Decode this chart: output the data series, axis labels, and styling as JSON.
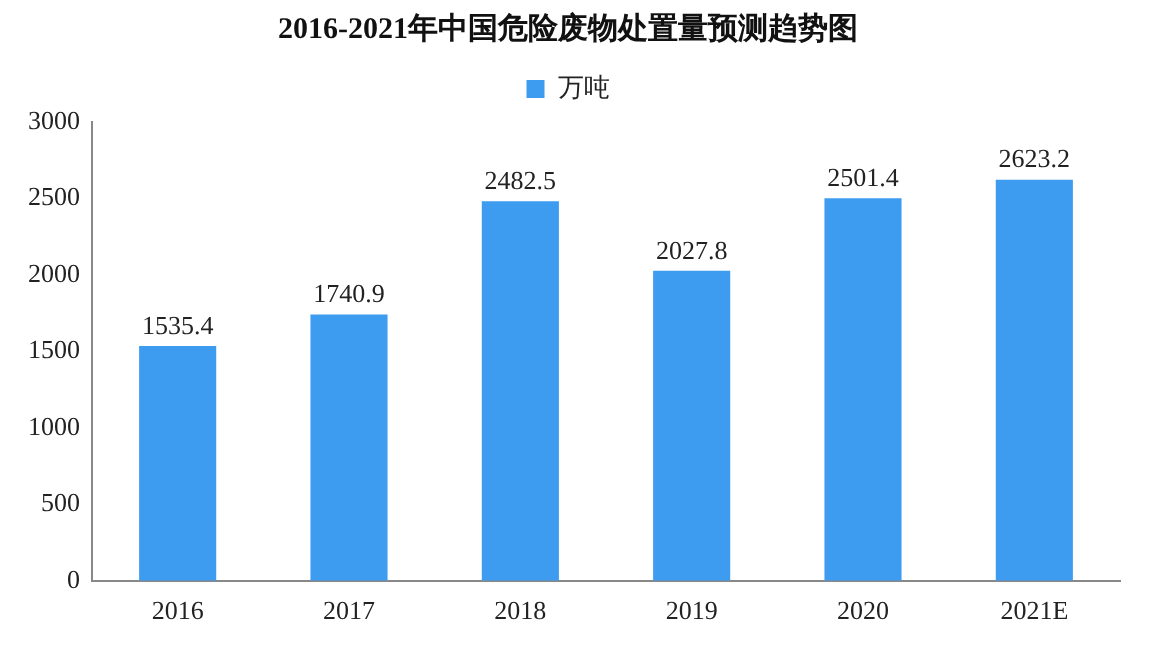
{
  "chart_data": {
    "type": "bar",
    "title": "2016-2021年中国危险废物处置量预测趋势图",
    "categories": [
      "2016",
      "2017",
      "2018",
      "2019",
      "2020",
      "2021E"
    ],
    "series": [
      {
        "name": "万吨",
        "color": "#3d9bf0",
        "values": [
          1535.4,
          1740.9,
          2482.5,
          2027.8,
          2501.4,
          2623.2
        ]
      }
    ],
    "ylim": [
      0,
      3000
    ],
    "yticks": [
      0,
      500,
      1000,
      1500,
      2000,
      2500,
      3000
    ],
    "grid": false,
    "legend": "top",
    "data_labels": true
  }
}
